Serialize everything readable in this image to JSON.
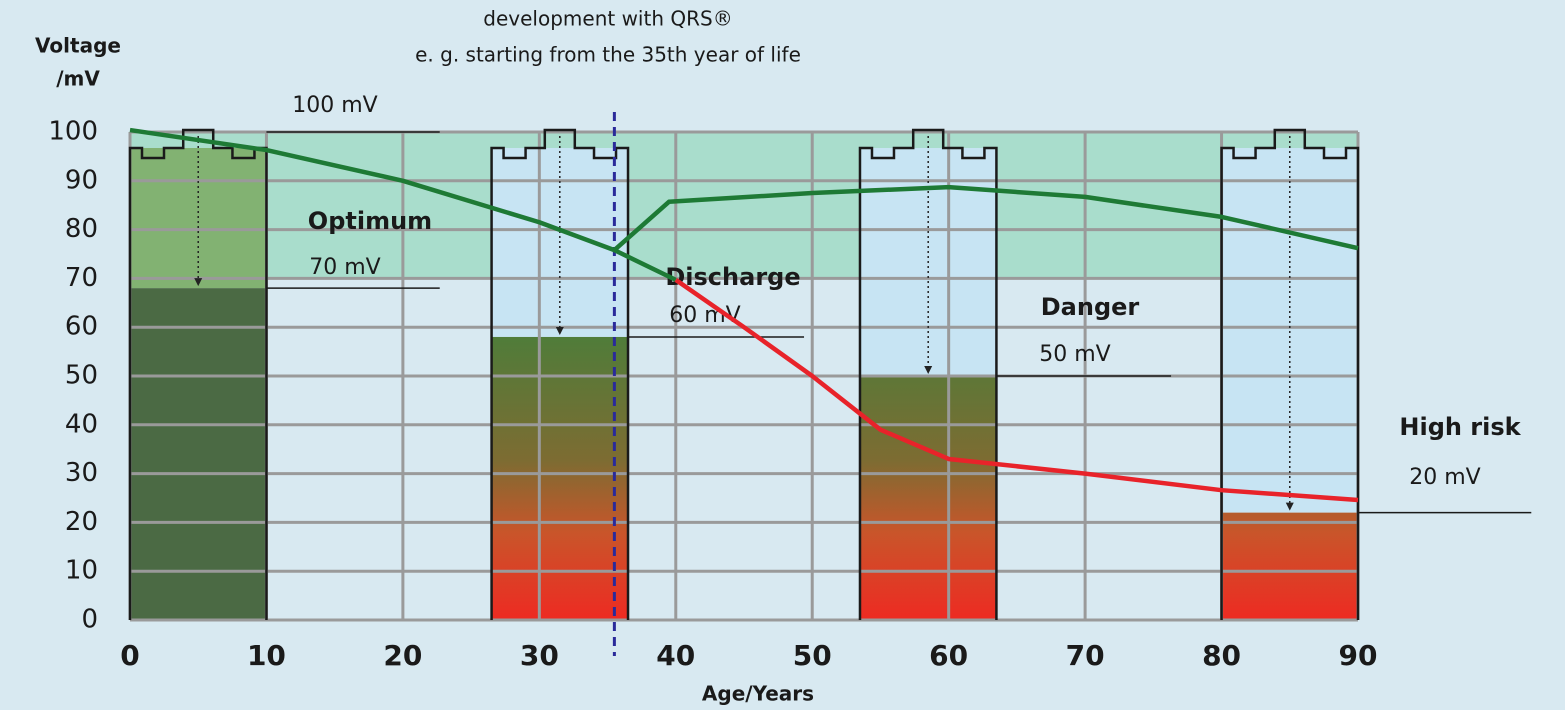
{
  "chart_data": {
    "type": "line",
    "ylabel": [
      "Voltage",
      "/mV"
    ],
    "xlabel": "Age/Years",
    "notes": [
      "development with QRS®",
      "e. g. starting from the 35th year of life"
    ],
    "xlim": [
      0,
      90
    ],
    "xticks": [
      0,
      10,
      20,
      30,
      40,
      50,
      60,
      70,
      80,
      90
    ],
    "ylim": [
      0,
      100
    ],
    "yticks": [
      0,
      10,
      20,
      30,
      40,
      50,
      60,
      70,
      80,
      90,
      100
    ],
    "grid": true,
    "optimum_zone": [
      70,
      100
    ],
    "bars": {
      "start": [
        0,
        26.5,
        53.5,
        80
      ],
      "end": [
        10,
        36.5,
        63.5,
        90
      ],
      "values": [
        68,
        58,
        50,
        22
      ]
    },
    "series": [
      {
        "color": "#1e7a35",
        "x": [
          0,
          10,
          20,
          30,
          35.5,
          40
        ],
        "values": [
          100.4,
          96.3,
          90,
          81.5,
          75.8,
          69.7
        ]
      },
      {
        "color": "#e8232a",
        "x": [
          40,
          45,
          50,
          55,
          60,
          70,
          80,
          90
        ],
        "values": [
          69.7,
          60,
          50,
          39,
          33,
          30,
          26.6,
          24.6
        ]
      },
      {
        "color": "#1e7a35",
        "x": [
          35.5,
          39.5,
          50,
          60,
          70,
          80,
          90
        ],
        "values": [
          75.8,
          85.7,
          87.5,
          88.7,
          86.7,
          82.6,
          76.2
        ]
      }
    ],
    "qrs_start": 35.5,
    "zones": [
      "Optimum",
      "Discharge",
      "Danger",
      "High risk"
    ],
    "thresholds": [
      "100 mV",
      "70 mV",
      "60 mV",
      "50 mV",
      "20 mV"
    ]
  }
}
